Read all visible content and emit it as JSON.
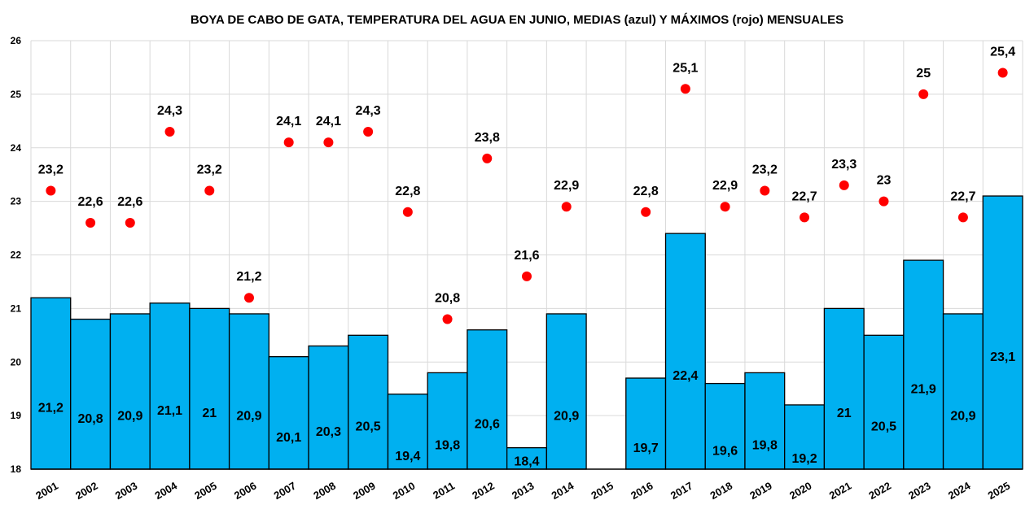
{
  "chart_data": {
    "type": "bar",
    "title": "BOYA DE CABO DE GATA, TEMPERATURA DEL AGUA EN JUNIO, MEDIAS (azul) Y MÁXIMOS (rojo) MENSUALES",
    "categories": [
      "2001",
      "2002",
      "2003",
      "2004",
      "2005",
      "2006",
      "2007",
      "2008",
      "2009",
      "2010",
      "2011",
      "2012",
      "2013",
      "2014",
      "2015",
      "2016",
      "2017",
      "2018",
      "2019",
      "2020",
      "2021",
      "2022",
      "2023",
      "2024",
      "2025"
    ],
    "series": [
      {
        "type": "bar",
        "color": "#00B0F0",
        "values": [
          21.2,
          20.8,
          20.9,
          21.1,
          21,
          20.9,
          20.1,
          20.3,
          20.5,
          19.4,
          19.8,
          20.6,
          18.4,
          20.9,
          null,
          19.7,
          22.4,
          19.6,
          19.8,
          19.2,
          21,
          20.5,
          21.9,
          20.9,
          23.1
        ],
        "labels": [
          "21,2",
          "20,8",
          "20,9",
          "21,1",
          "21",
          "20,9",
          "20,1",
          "20,3",
          "20,5",
          "19,4",
          "19,8",
          "20,6",
          "18,4",
          "20,9",
          "",
          "19,7",
          "22,4",
          "19,6",
          "19,8",
          "19,2",
          "21",
          "20,5",
          "21,9",
          "20,9",
          "23,1"
        ]
      },
      {
        "type": "scatter",
        "color": "#FF0000",
        "values": [
          23.2,
          22.6,
          22.6,
          24.3,
          23.2,
          21.2,
          24.1,
          24.1,
          24.3,
          22.8,
          20.8,
          23.8,
          21.6,
          22.9,
          null,
          22.8,
          25.1,
          22.9,
          23.2,
          22.7,
          23.3,
          23,
          25,
          22.7,
          25.4
        ],
        "labels": [
          "23,2",
          "22,6",
          "22,6",
          "24,3",
          "23,2",
          "21,2",
          "24,1",
          "24,1",
          "24,3",
          "22,8",
          "20,8",
          "23,8",
          "21,6",
          "22,9",
          "",
          "22,8",
          "25,1",
          "22,9",
          "23,2",
          "22,7",
          "23,3",
          "23",
          "25",
          "22,7",
          "25,4"
        ]
      }
    ],
    "ylim": [
      18,
      26
    ],
    "yticks": [
      "18",
      "19",
      "20",
      "21",
      "22",
      "23",
      "24",
      "25",
      "26"
    ],
    "grid": true,
    "xlabel": "",
    "ylabel": ""
  }
}
